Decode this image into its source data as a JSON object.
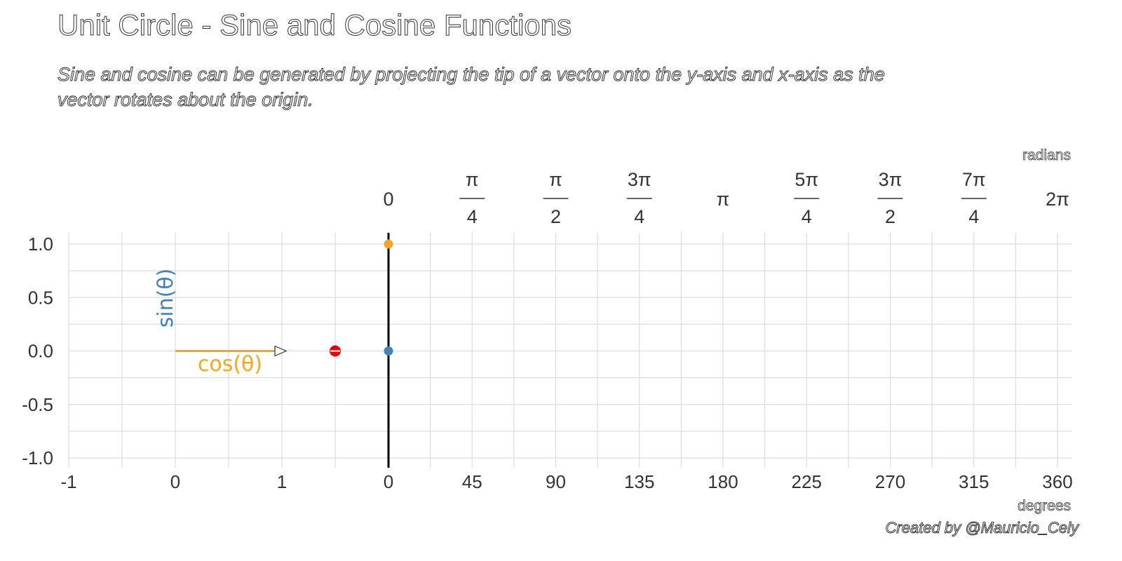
{
  "title": "Unit Circle - Sine and Cosine Functions",
  "subtitle": "Sine and cosine can be generated by projecting the tip of a vector onto the y-axis and x-axis as the vector rotates about the origin.",
  "caption": "Created by @Mauricio_Cely",
  "colors": {
    "cos": "#F5A623",
    "sin": "#4682B4",
    "point": "#E8000B",
    "grid": "#dddddd",
    "axis": "#000000"
  },
  "chart_data": {
    "type": "scatter",
    "title": "Unit Circle - Sine and Cosine Functions",
    "subtitle": "Sine and cosine can be generated by projecting the tip of a vector onto the y-axis and x-axis as the vector rotates about the origin.",
    "grid": true,
    "y_axis": {
      "ylim": [
        -1,
        1
      ],
      "ticks": [
        "1.0",
        "0.5",
        "0.0",
        "-0.5",
        "-1.0"
      ]
    },
    "circle_panel": {
      "xlim": [
        -1,
        1
      ],
      "x_ticks": [
        -1,
        0,
        1
      ],
      "x_tick_labels": [
        "-1",
        "0",
        "1"
      ],
      "vector": {
        "from": [
          0,
          0
        ],
        "to": [
          1,
          0
        ]
      },
      "cos_label": "cos(θ)",
      "sin_label": "sin(θ)",
      "projection_point": {
        "x": 1.5,
        "y": 0
      }
    },
    "wave_panel": {
      "x_unit_bottom": "degrees",
      "x_unit_top": "radians",
      "degree_ticks": [
        "0",
        "45",
        "90",
        "135",
        "180",
        "225",
        "270",
        "315",
        "360"
      ],
      "radian_ticks": [
        {
          "num": "0",
          "den": ""
        },
        {
          "num": "π",
          "den": "4"
        },
        {
          "num": "π",
          "den": "2"
        },
        {
          "num": "3π",
          "den": "4"
        },
        {
          "num": "π",
          "den": ""
        },
        {
          "num": "5π",
          "den": "4"
        },
        {
          "num": "3π",
          "den": "2"
        },
        {
          "num": "7π",
          "den": "4"
        },
        {
          "num": "2π",
          "den": ""
        }
      ],
      "series": [
        {
          "color": "#F5A623",
          "x": [
            0
          ],
          "y": [
            1
          ]
        },
        {
          "color": "#4682B4",
          "x": [
            0
          ],
          "y": [
            0
          ]
        }
      ]
    }
  }
}
